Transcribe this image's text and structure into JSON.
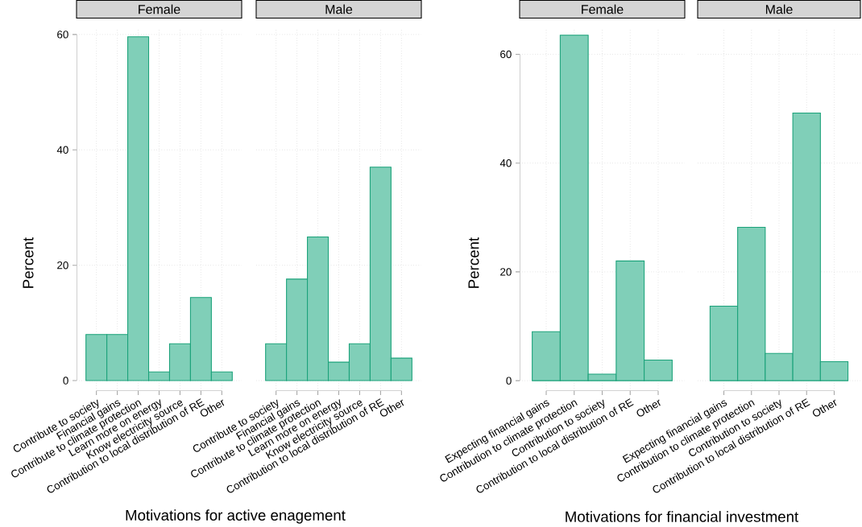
{
  "chart_data": [
    {
      "type": "bar",
      "title": "Female",
      "ylabel": "Percent",
      "xlabel": "Motivations for active enagement",
      "categories": [
        "Contribute to society",
        "Financial gains",
        "Contribute to climate protection",
        "Learn more on energy",
        "Know electricity source",
        "Contribution to local distribution of RE",
        "Other"
      ],
      "values": [
        8.0,
        8.0,
        59.6,
        1.5,
        6.4,
        14.4,
        1.5
      ],
      "color": "#80cfb8",
      "ylim": [
        -1.8,
        61.1
      ],
      "yticks": [
        0,
        20,
        40,
        60
      ],
      "grid": true
    },
    {
      "type": "bar",
      "title": "Male",
      "categories": [
        "Contribute to society",
        "Financial gains",
        "Contribute to climate protection",
        "Learn more on energy",
        "Know electricity source",
        "Contribution to local distribution of RE",
        "Other"
      ],
      "values": [
        6.4,
        17.6,
        24.9,
        3.2,
        6.4,
        37.0,
        3.9
      ],
      "color": "#80cfb8",
      "ylim": [
        -1.8,
        61.1
      ],
      "yticks": [
        0,
        20,
        40,
        60
      ],
      "grid": true,
      "tick_labels": "x"
    },
    {
      "type": "bar",
      "title": "Female",
      "ylabel": "Percent",
      "xlabel": "Motivations for financial investment",
      "categories": [
        "Expecting financial gains",
        "Contribution to climate protection",
        "Contribution to society",
        "Contribution to local distribution of RE",
        "Other"
      ],
      "values": [
        9.0,
        63.5,
        1.2,
        22.0,
        3.8
      ],
      "color": "#80cfb8",
      "ylim": [
        -1.9,
        64.8
      ],
      "yticks": [
        0,
        20,
        40,
        60
      ],
      "grid": true
    },
    {
      "type": "bar",
      "title": "Male",
      "categories": [
        "Expecting financial gains",
        "Contribution to climate protection",
        "Contribution to society",
        "Contribution to local distribution of RE",
        "Other"
      ],
      "values": [
        13.7,
        28.2,
        5.0,
        49.2,
        3.5
      ],
      "color": "#80cfb8",
      "ylim": [
        -1.9,
        64.8
      ],
      "yticks": [
        0,
        20,
        40,
        60
      ],
      "grid": true,
      "tick_labels": "x"
    }
  ]
}
